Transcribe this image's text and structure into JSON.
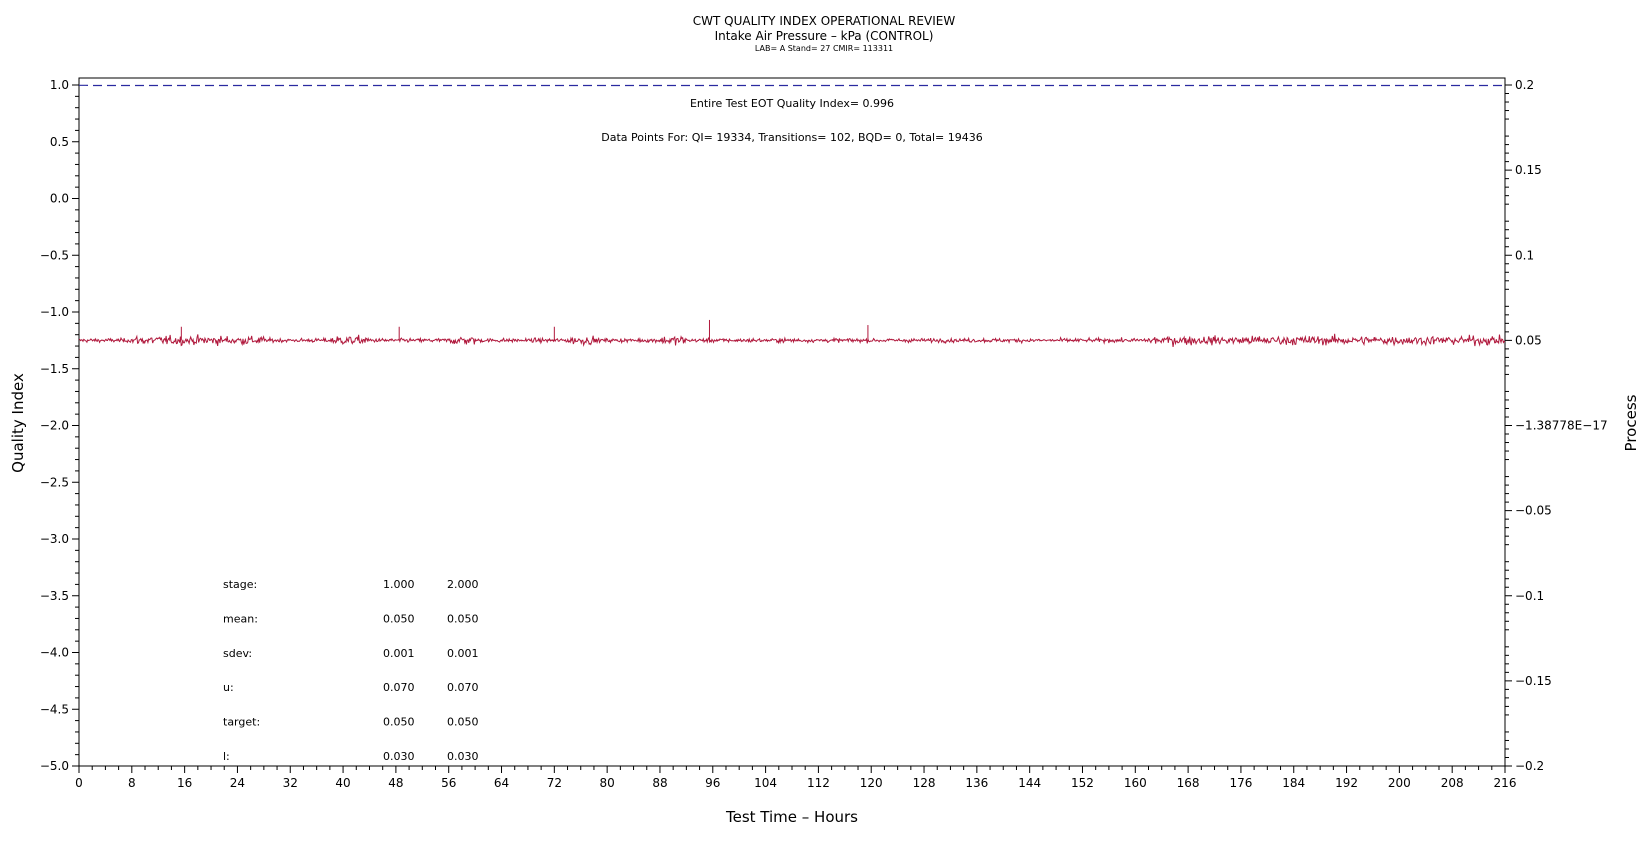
{
  "header": {
    "title": "CWT QUALITY INDEX OPERATIONAL REVIEW",
    "subtitle": "Intake Air Pressure – kPa (CONTROL)",
    "meta": "LAB= A Stand= 27 CMIR= 113311"
  },
  "annotations": {
    "eot": "Entire Test EOT Quality Index=   0.996",
    "points": "Data Points For: QI= 19334, Transitions=   102, BQD=     0, Total= 19436"
  },
  "stats": {
    "rows": [
      {
        "label": "stage:",
        "v1": "1.000",
        "v2": "2.000"
      },
      {
        "label": "mean:",
        "v1": "0.050",
        "v2": "0.050"
      },
      {
        "label": "sdev:",
        "v1": "0.001",
        "v2": "0.001"
      },
      {
        "label": "u:",
        "v1": "0.070",
        "v2": "0.070"
      },
      {
        "label": "target:",
        "v1": "0.050",
        "v2": "0.050"
      },
      {
        "label": "l:",
        "v1": "0.030",
        "v2": "0.030"
      }
    ]
  },
  "colors": {
    "process": "#b0183c",
    "quality": "#2a2aa0",
    "axis": "#000000"
  },
  "chart_data": {
    "type": "line",
    "title": "CWT QUALITY INDEX OPERATIONAL REVIEW",
    "subtitle": "Intake Air Pressure – kPa (CONTROL)",
    "xlabel": "Test Time – Hours",
    "ylabel_left": "Quality Index",
    "ylabel_right": "Process",
    "xlim": [
      0,
      216
    ],
    "ylim_left": [
      -5.0,
      1.0
    ],
    "ylim_right": [
      -0.2,
      0.2
    ],
    "x_ticks": [
      0,
      8,
      16,
      24,
      32,
      40,
      48,
      56,
      64,
      72,
      80,
      88,
      96,
      104,
      112,
      120,
      128,
      136,
      144,
      152,
      160,
      168,
      176,
      184,
      192,
      200,
      208,
      216
    ],
    "y_left_ticks": [
      1.0,
      0.5,
      0.0,
      -0.5,
      -1.0,
      -1.5,
      -2.0,
      -2.5,
      -3.0,
      -3.5,
      -4.0,
      -4.5,
      -5.0
    ],
    "y_left_tick_labels": [
      "1.0",
      "0.5",
      "0.0",
      "−0.5",
      "−1.0",
      "−1.5",
      "−2.0",
      "−2.5",
      "−3.0",
      "−3.5",
      "−4.0",
      "−4.5",
      "−5.0"
    ],
    "y_right_ticks": [
      0.2,
      0.15,
      0.1,
      0.05,
      0,
      -0.05,
      -0.1,
      -0.15,
      -0.2
    ],
    "y_right_tick_labels": [
      "0.2",
      "0.15",
      "0.1",
      "0.05",
      "−1.38778E−17",
      "−0.05",
      "−0.1",
      "−0.15",
      "−0.2"
    ],
    "grid": false,
    "series": [
      {
        "axis": "left",
        "style": "dashed",
        "x": [
          0,
          1,
          2,
          216
        ],
        "y": [
          0.997,
          0.997,
          0.996,
          0.996
        ]
      },
      {
        "axis": "right",
        "style": "noisy",
        "mean": 0.05,
        "sdev": 0.001,
        "x_range": [
          0,
          216
        ],
        "spikes": [
          {
            "x": 15.5,
            "y": 0.058
          },
          {
            "x": 48.5,
            "y": 0.058
          },
          {
            "x": 72.0,
            "y": 0.058
          },
          {
            "x": 95.5,
            "y": 0.062
          },
          {
            "x": 119.5,
            "y": 0.059
          }
        ]
      }
    ]
  }
}
